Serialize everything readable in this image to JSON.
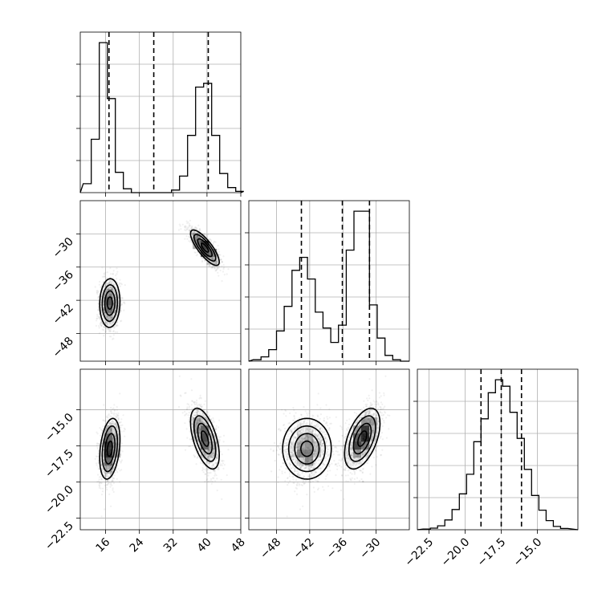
{
  "chart_data": {
    "type": "corner",
    "parameters": [
      {
        "id": "p0",
        "range": [
          10,
          48
        ],
        "ticks": [
          16,
          24,
          32,
          40,
          48
        ],
        "tick_labels": [
          "16",
          "24",
          "32",
          "40",
          "48"
        ],
        "histogram_bins": [
          10.7,
          12.6,
          14.5,
          16.4,
          18.3,
          20.2,
          22.1,
          24.0,
          25.9,
          27.8,
          29.7,
          31.6,
          33.5,
          35.4,
          37.3,
          39.2,
          41.1,
          43.0,
          44.9,
          46.8
        ],
        "histogram_counts": [
          0.7,
          4.2,
          11.8,
          7.4,
          1.6,
          0.3,
          0,
          0,
          0,
          0,
          0,
          0.2,
          1.3,
          4.5,
          8.3,
          8.6,
          4.5,
          1.5,
          0.4,
          0.1
        ],
        "quantiles": [
          16.8,
          27.4,
          40.3
        ]
      },
      {
        "id": "p1",
        "range": [
          -53,
          -24
        ],
        "ticks": [
          -48,
          -42,
          -36,
          -30
        ],
        "tick_labels": [
          "−48",
          "−42",
          "−36",
          "−30"
        ],
        "histogram_bins": [
          -52.2,
          -50.8,
          -49.4,
          -48.0,
          -46.6,
          -45.2,
          -43.8,
          -42.4,
          -41.0,
          -39.6,
          -38.2,
          -36.8,
          -35.4,
          -34.0,
          -32.6,
          -31.2,
          -29.8,
          -28.4,
          -27.0,
          -25.6
        ],
        "histogram_counts": [
          0.1,
          0.3,
          0.8,
          2.1,
          3.8,
          6.3,
          7.2,
          5.7,
          3.4,
          2.3,
          1.3,
          2.5,
          7.7,
          10.4,
          10.4,
          3.9,
          1.6,
          0.4,
          0.1,
          0
        ],
        "quantiles": [
          -43.5,
          -36.1,
          -31.2
        ]
      },
      {
        "id": "p2",
        "range": [
          -23.3,
          -12.2
        ],
        "ticks": [
          -22.5,
          -20.0,
          -17.5,
          -15.0
        ],
        "tick_labels": [
          "−22.5",
          "−20.0",
          "−17.5",
          "−15.0"
        ],
        "histogram_bins": [
          -22.9,
          -22.4,
          -21.9,
          -21.4,
          -20.9,
          -20.4,
          -19.9,
          -19.4,
          -18.9,
          -18.4,
          -17.9,
          -17.4,
          -16.9,
          -16.4,
          -15.9,
          -15.4,
          -14.9,
          -14.4,
          -13.9,
          -13.4
        ],
        "histogram_counts": [
          0.02,
          0.05,
          0.12,
          0.3,
          0.62,
          1.1,
          1.7,
          2.7,
          3.4,
          4.2,
          4.6,
          4.4,
          3.6,
          2.8,
          1.85,
          1.05,
          0.6,
          0.28,
          0.1,
          0.04
        ],
        "quantiles": [
          -18.9,
          -17.5,
          -16.1
        ]
      }
    ],
    "modes": [
      {
        "weight": 0.5,
        "mean": [
          17.0,
          -42.5,
          -17.7
        ],
        "sd": [
          1.2,
          2.2,
          1.05
        ],
        "corr": [
          [
            1,
            0.05,
            0.3
          ],
          [
            0.05,
            1,
            0.0
          ],
          [
            0.3,
            0.0,
            1
          ]
        ]
      },
      {
        "weight": 0.5,
        "mean": [
          39.5,
          -32.5,
          -17.0
        ],
        "sd": [
          1.7,
          1.6,
          1.05
        ],
        "corr": [
          [
            1,
            -0.8,
            -0.55
          ],
          [
            -0.8,
            1,
            0.5
          ],
          [
            -0.55,
            0.5,
            1
          ]
        ]
      }
    ],
    "grid": true,
    "contour_levels": 3,
    "sample_count_per_mode": 1500
  }
}
